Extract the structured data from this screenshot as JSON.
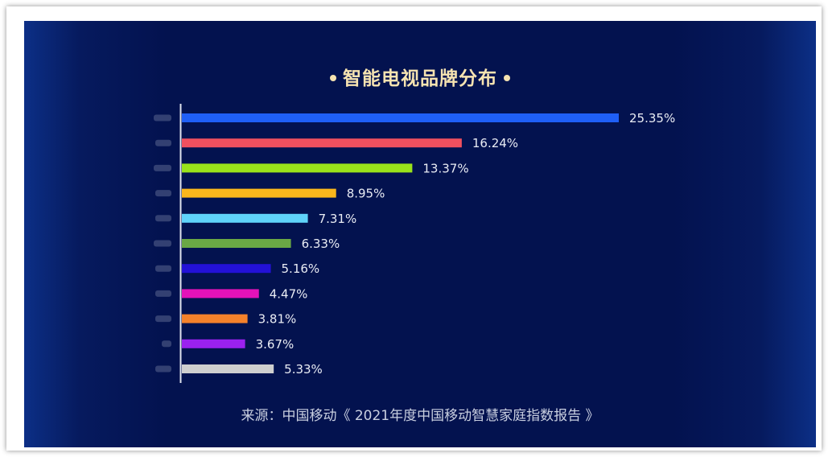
{
  "title": "智能电视品牌分布",
  "source": "来源：中国移动《 2021年度中国移动智慧家庭指数报告 》",
  "chart_data": {
    "type": "bar",
    "orientation": "horizontal",
    "title": "智能电视品牌分布",
    "categories": [
      "",
      "",
      "",
      "",
      "",
      "",
      "",
      "",
      "",
      "",
      ""
    ],
    "values": [
      25.35,
      16.24,
      13.37,
      8.95,
      7.31,
      6.33,
      5.16,
      4.47,
      3.81,
      3.67,
      5.33
    ],
    "value_labels": [
      "25.35%",
      "16.24%",
      "13.37%",
      "8.95%",
      "7.31%",
      "6.33%",
      "5.16%",
      "4.47%",
      "3.81%",
      "3.67%",
      "5.33%"
    ],
    "colors": [
      "#1f5ff6",
      "#f0505f",
      "#9ae21a",
      "#fbb71c",
      "#5fd3fa",
      "#6aa845",
      "#2311d6",
      "#e412b9",
      "#f5822b",
      "#9a21ef",
      "#cfcfcf"
    ],
    "category_labels_blurred": true,
    "xlim": [
      0,
      25.35
    ],
    "xlabel": "",
    "ylabel": "",
    "grid": false,
    "legend": "none"
  }
}
